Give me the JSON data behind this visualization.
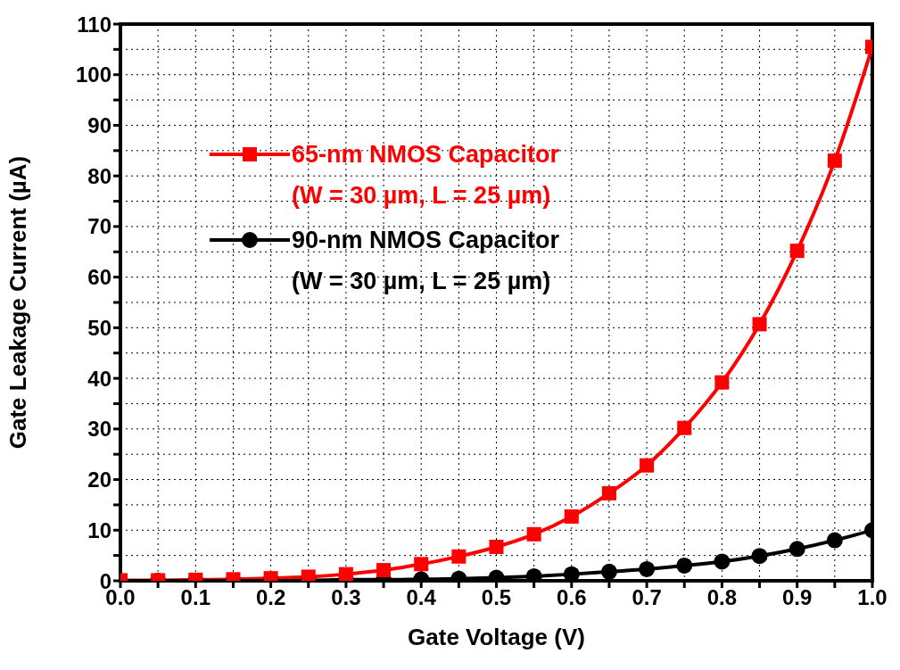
{
  "chart_data": {
    "type": "line",
    "xlabel": "Gate Voltage (V)",
    "ylabel": "Gate Leakage Current (µA)",
    "xlim": [
      0,
      1
    ],
    "ylim": [
      0,
      110
    ],
    "xticks": [
      {
        "value": 0,
        "label": "0.0"
      },
      {
        "value": 0.05,
        "label": null
      },
      0.1,
      {
        "value": 0.15,
        "label": null
      },
      0.2,
      {
        "value": 0.25,
        "label": null
      },
      0.3,
      {
        "value": 0.35,
        "label": null
      },
      0.4,
      {
        "value": 0.45,
        "label": null
      },
      0.5,
      {
        "value": 0.55,
        "label": null
      },
      0.6,
      {
        "value": 0.65,
        "label": null
      },
      0.7,
      {
        "value": 0.75,
        "label": null
      },
      0.8,
      {
        "value": 0.85,
        "label": null
      },
      0.9,
      {
        "value": 0.95,
        "label": null
      },
      {
        "value": 1,
        "label": "1.0"
      }
    ],
    "yticks": [
      0,
      {
        "value": 5,
        "label": null
      },
      10,
      {
        "value": 15,
        "label": null
      },
      20,
      {
        "value": 25,
        "label": null
      },
      30,
      {
        "value": 35,
        "label": null
      },
      40,
      {
        "value": 45,
        "label": null
      },
      50,
      {
        "value": 55,
        "label": null
      },
      60,
      {
        "value": 65,
        "label": null
      },
      70,
      {
        "value": 75,
        "label": null
      },
      80,
      {
        "value": 85,
        "label": null
      },
      90,
      {
        "value": 95,
        "label": null
      },
      100,
      {
        "value": 105,
        "label": null
      },
      110
    ],
    "grid": true,
    "legend": "top left",
    "line_style": "solid",
    "series": [
      {
        "name": "65-nm NMOS Capacitor\n(W = 30 µm, L = 25 µm)",
        "color": "#ff0000",
        "marker": "square",
        "x": [
          0,
          0.05,
          0.1,
          0.15,
          0.2,
          0.25,
          0.3,
          0.35,
          0.4,
          0.45,
          0.5,
          0.55,
          0.6,
          0.65,
          0.7,
          0.75,
          0.8,
          0.85,
          0.9,
          0.95,
          1.0
        ],
        "values": [
          0.1,
          0.1,
          0.2,
          0.3,
          0.5,
          0.8,
          1.3,
          2.1,
          3.3,
          4.8,
          6.7,
          9.2,
          12.7,
          17.3,
          22.8,
          30.2,
          39.2,
          50.7,
          65.2,
          83.0,
          105.5
        ]
      },
      {
        "name": "90-nm NMOS Capacitor\n(W = 30 µm, L = 25 µm)",
        "color": "#000000",
        "marker": "circle",
        "x": [
          0.05,
          0.1,
          0.15,
          0.2,
          0.25,
          0.3,
          0.35,
          0.4,
          0.45,
          0.5,
          0.55,
          0.6,
          0.65,
          0.7,
          0.75,
          0.8,
          0.85,
          0.9,
          0.95,
          1.0
        ],
        "values": [
          0.0,
          0.0,
          0.0,
          0.1,
          0.1,
          0.2,
          0.2,
          0.3,
          0.4,
          0.6,
          0.9,
          1.3,
          1.8,
          2.3,
          3.0,
          3.8,
          4.9,
          6.3,
          8.0,
          10.0
        ]
      }
    ]
  }
}
